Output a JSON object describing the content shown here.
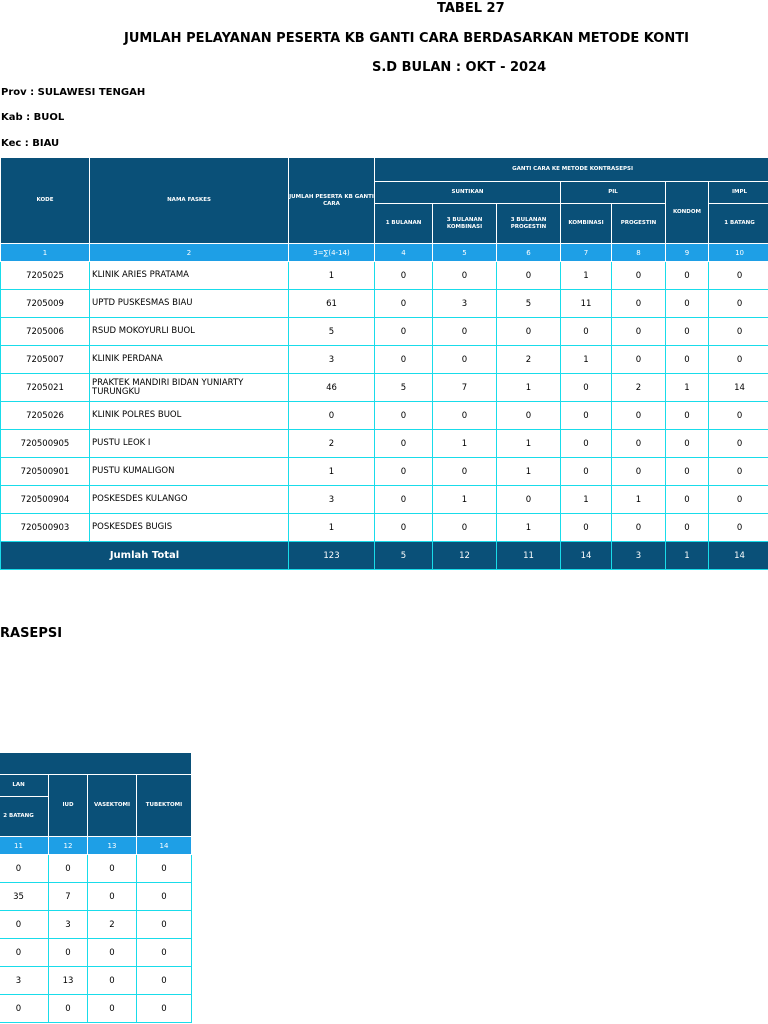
{
  "header": {
    "table_no": "TABEL 27",
    "title": "JUMLAH PELAYANAN PESERTA KB GANTI CARA BERDASARKAN METODE KONTI",
    "period": "S.D BULAN  : OKT -  2024",
    "prov": "Prov :  SULAWESI TENGAH",
    "kab": "Kab  :  BUOL",
    "kec": "Kec  :  BIAU",
    "continuation": "RASEPSI"
  },
  "table": {
    "headers": {
      "kode": "KODE",
      "nama": "NAMA FASKES",
      "jumlah": "JUMLAH PESERTA KB GANTI CARA",
      "group": "GANTI CARA KE METODE KONTRASEPSI",
      "suntikan": "SUNTIKAN",
      "pil": "PIL",
      "kondom": "KONDOM",
      "implan_trunc": "IMPL",
      "s1": "1 BULANAN",
      "s3k": "3 BULANAN KOMBINASI",
      "s3p": "3 BULANAN PROGESTIN",
      "kombinasi": "KOMBINASI",
      "progestin": "PROGESTIN",
      "batang1": "1 BATANG"
    },
    "col_numbers": [
      "1",
      "2",
      "3=∑(4-14)",
      "4",
      "5",
      "6",
      "7",
      "8",
      "9",
      "10"
    ],
    "rows": [
      {
        "kode": "7205025",
        "nama": "KLINIK ARIES PRATAMA",
        "v": [
          "1",
          "0",
          "0",
          "0",
          "1",
          "0",
          "0",
          "0"
        ]
      },
      {
        "kode": "7205009",
        "nama": "UPTD PUSKESMAS BIAU",
        "v": [
          "61",
          "0",
          "3",
          "5",
          "11",
          "0",
          "0",
          "0"
        ]
      },
      {
        "kode": "7205006",
        "nama": "RSUD MOKOYURLI BUOL",
        "v": [
          "5",
          "0",
          "0",
          "0",
          "0",
          "0",
          "0",
          "0"
        ]
      },
      {
        "kode": "7205007",
        "nama": "KLINIK PERDANA",
        "v": [
          "3",
          "0",
          "0",
          "2",
          "1",
          "0",
          "0",
          "0"
        ]
      },
      {
        "kode": "7205021",
        "nama": "PRAKTEK MANDIRI BIDAN YUNIARTY TURUNGKU",
        "v": [
          "46",
          "5",
          "7",
          "1",
          "0",
          "2",
          "1",
          "14"
        ]
      },
      {
        "kode": "7205026",
        "nama": "KLINIK POLRES BUOL",
        "v": [
          "0",
          "0",
          "0",
          "0",
          "0",
          "0",
          "0",
          "0"
        ]
      },
      {
        "kode": "720500905",
        "nama": "PUSTU LEOK I",
        "v": [
          "2",
          "0",
          "1",
          "1",
          "0",
          "0",
          "0",
          "0"
        ]
      },
      {
        "kode": "720500901",
        "nama": "PUSTU KUMALIGON",
        "v": [
          "1",
          "0",
          "0",
          "1",
          "0",
          "0",
          "0",
          "0"
        ]
      },
      {
        "kode": "720500904",
        "nama": "POSKESDES KULANGO",
        "v": [
          "3",
          "0",
          "1",
          "0",
          "1",
          "1",
          "0",
          "0"
        ]
      },
      {
        "kode": "720500903",
        "nama": "POSKESDES BUGIS",
        "v": [
          "1",
          "0",
          "0",
          "1",
          "0",
          "0",
          "0",
          "0"
        ]
      }
    ],
    "total": {
      "label": "Jumlah Total",
      "v": [
        "123",
        "5",
        "12",
        "11",
        "14",
        "3",
        "1",
        "14"
      ]
    }
  },
  "continuation_table": {
    "headers": {
      "implan_tail": "LAN",
      "batang2": "2 BATANG",
      "iud": "IUD",
      "vasektomi": "VASEKTOMI",
      "tubektomi": "TUBEKTOMI"
    },
    "col_numbers": [
      "11",
      "12",
      "13",
      "14"
    ],
    "rows": [
      [
        "0",
        "0",
        "0",
        "0"
      ],
      [
        "35",
        "7",
        "0",
        "0"
      ],
      [
        "0",
        "3",
        "2",
        "0"
      ],
      [
        "0",
        "0",
        "0",
        "0"
      ],
      [
        "3",
        "13",
        "0",
        "0"
      ],
      [
        "0",
        "0",
        "0",
        "0"
      ]
    ]
  }
}
